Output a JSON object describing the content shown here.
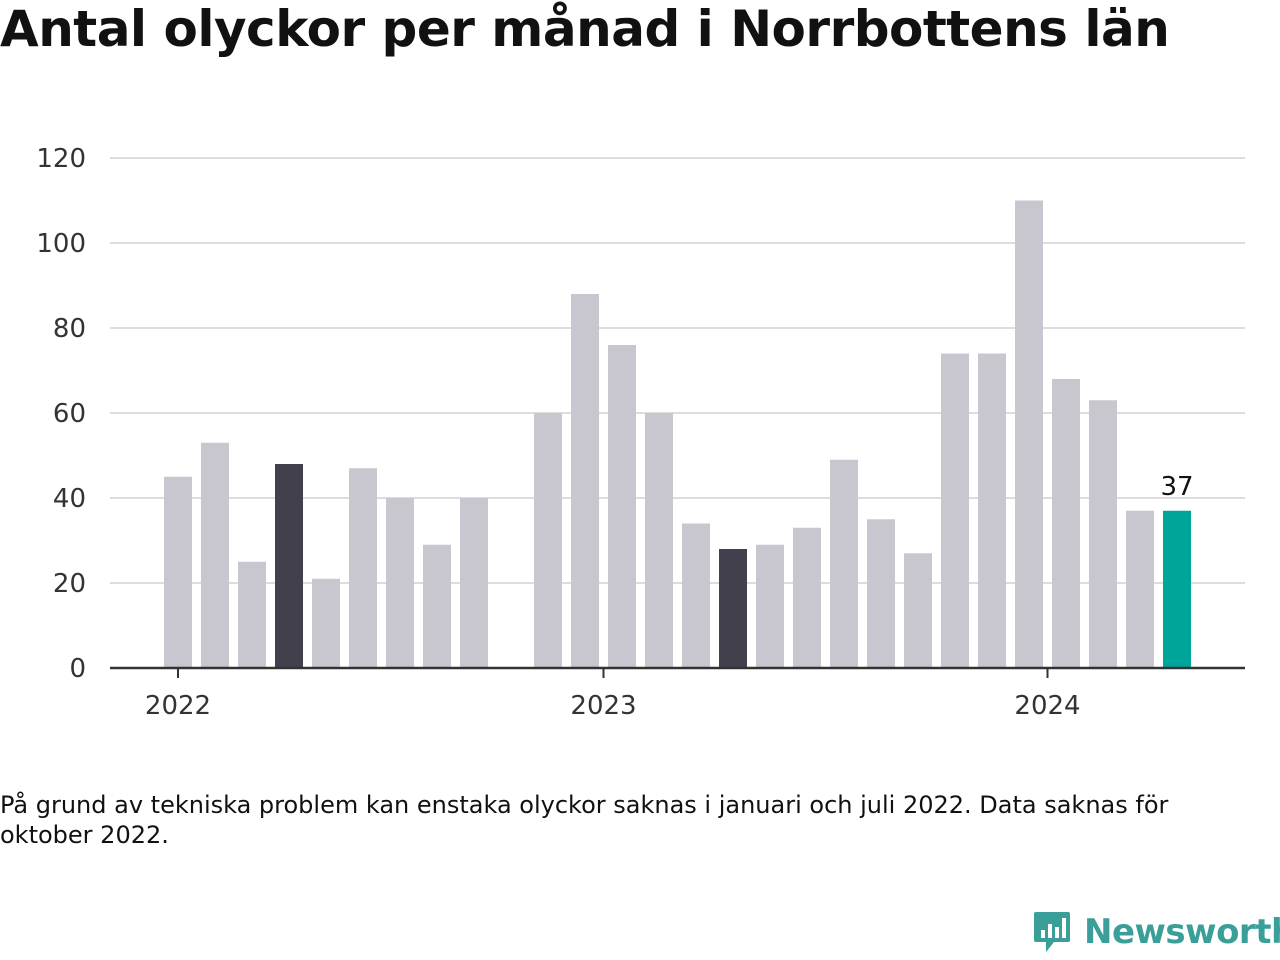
{
  "chart_data": {
    "type": "bar",
    "title": "Antal olyckor per månad i Norrbottens län",
    "xlabel": "",
    "ylabel": "",
    "ylim": [
      0,
      120
    ],
    "yticks": [
      0,
      20,
      40,
      60,
      80,
      100,
      120
    ],
    "grid": true,
    "x_tick_labels": [
      "2022",
      "2023",
      "2024"
    ],
    "categories": [
      "2022-01",
      "2022-02",
      "2022-03",
      "2022-04",
      "2022-05",
      "2022-06",
      "2022-07",
      "2022-08",
      "2022-09",
      "2022-10",
      "2022-11",
      "2022-12",
      "2023-01",
      "2023-02",
      "2023-03",
      "2023-04",
      "2023-05",
      "2023-06",
      "2023-07",
      "2023-08",
      "2023-09",
      "2023-10",
      "2023-11",
      "2023-12",
      "2024-01",
      "2024-02",
      "2024-03",
      "2024-04"
    ],
    "values": [
      45,
      53,
      25,
      48,
      21,
      47,
      40,
      29,
      40,
      null,
      60,
      88,
      76,
      60,
      34,
      28,
      29,
      33,
      49,
      35,
      27,
      74,
      74,
      110,
      68,
      63,
      37,
      37
    ],
    "colors": {
      "default": "#c8c7cf",
      "highlight_dark": "#42404c",
      "latest": "#00a59a",
      "grid": "#dddddd",
      "axis": "#333333"
    },
    "highlight_dark_indices": [
      3,
      15
    ],
    "latest_index": 27,
    "data_labels": [
      {
        "index": 27,
        "text": "37"
      }
    ]
  },
  "footnote": "På grund av tekniska problem kan enstaka olyckor saknas i januari och juli 2022. Data saknas för oktober 2022.",
  "logo": {
    "text": "Newsworthy",
    "icon": "bar-chart-speech-bubble-icon",
    "color": "#3a9f98"
  }
}
